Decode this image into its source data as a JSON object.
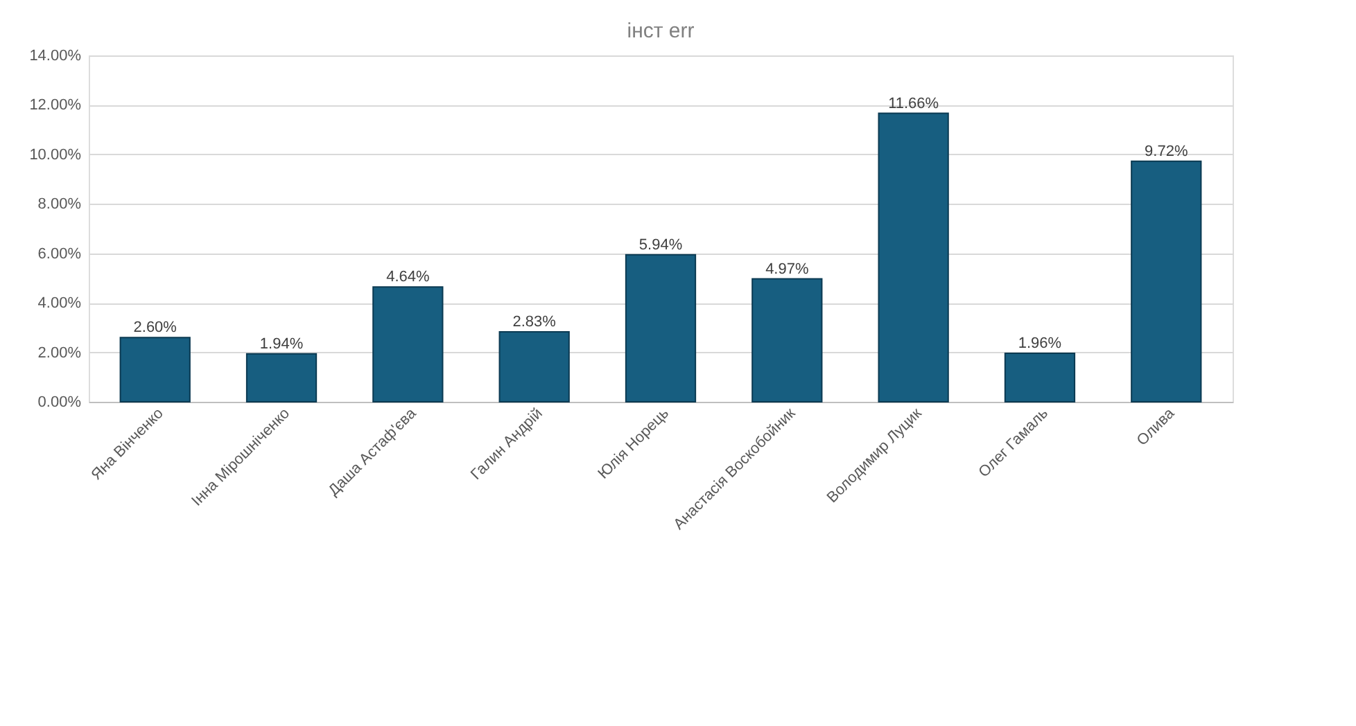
{
  "chart_data": {
    "type": "bar",
    "title": "інст err",
    "categories": [
      "Яна Вінченко",
      "Інна Мірошніченко",
      "Даша Астаф'єва",
      "Галин Андрій",
      "Юлія Норець",
      "Анастасія Воскобойник",
      "Володимир Луцик",
      "Олег Гамаль",
      "Олива"
    ],
    "values": [
      2.6,
      1.94,
      4.64,
      2.83,
      5.94,
      4.97,
      11.66,
      1.96,
      9.72
    ],
    "value_labels": [
      "2.60%",
      "1.94%",
      "4.64%",
      "2.83%",
      "5.94%",
      "4.97%",
      "11.66%",
      "1.96%",
      "9.72%"
    ],
    "color": "#175e80",
    "ylim": [
      0,
      14
    ],
    "yticks": [
      {
        "value": 0,
        "label": "0.00%"
      },
      {
        "value": 2,
        "label": "2.00%"
      },
      {
        "value": 4,
        "label": "4.00%"
      },
      {
        "value": 6,
        "label": "6.00%"
      },
      {
        "value": 8,
        "label": "8.00%"
      },
      {
        "value": 10,
        "label": "10.00%"
      },
      {
        "value": 12,
        "label": "12.00%"
      },
      {
        "value": 14,
        "label": "14.00%"
      }
    ],
    "grid": "y"
  }
}
